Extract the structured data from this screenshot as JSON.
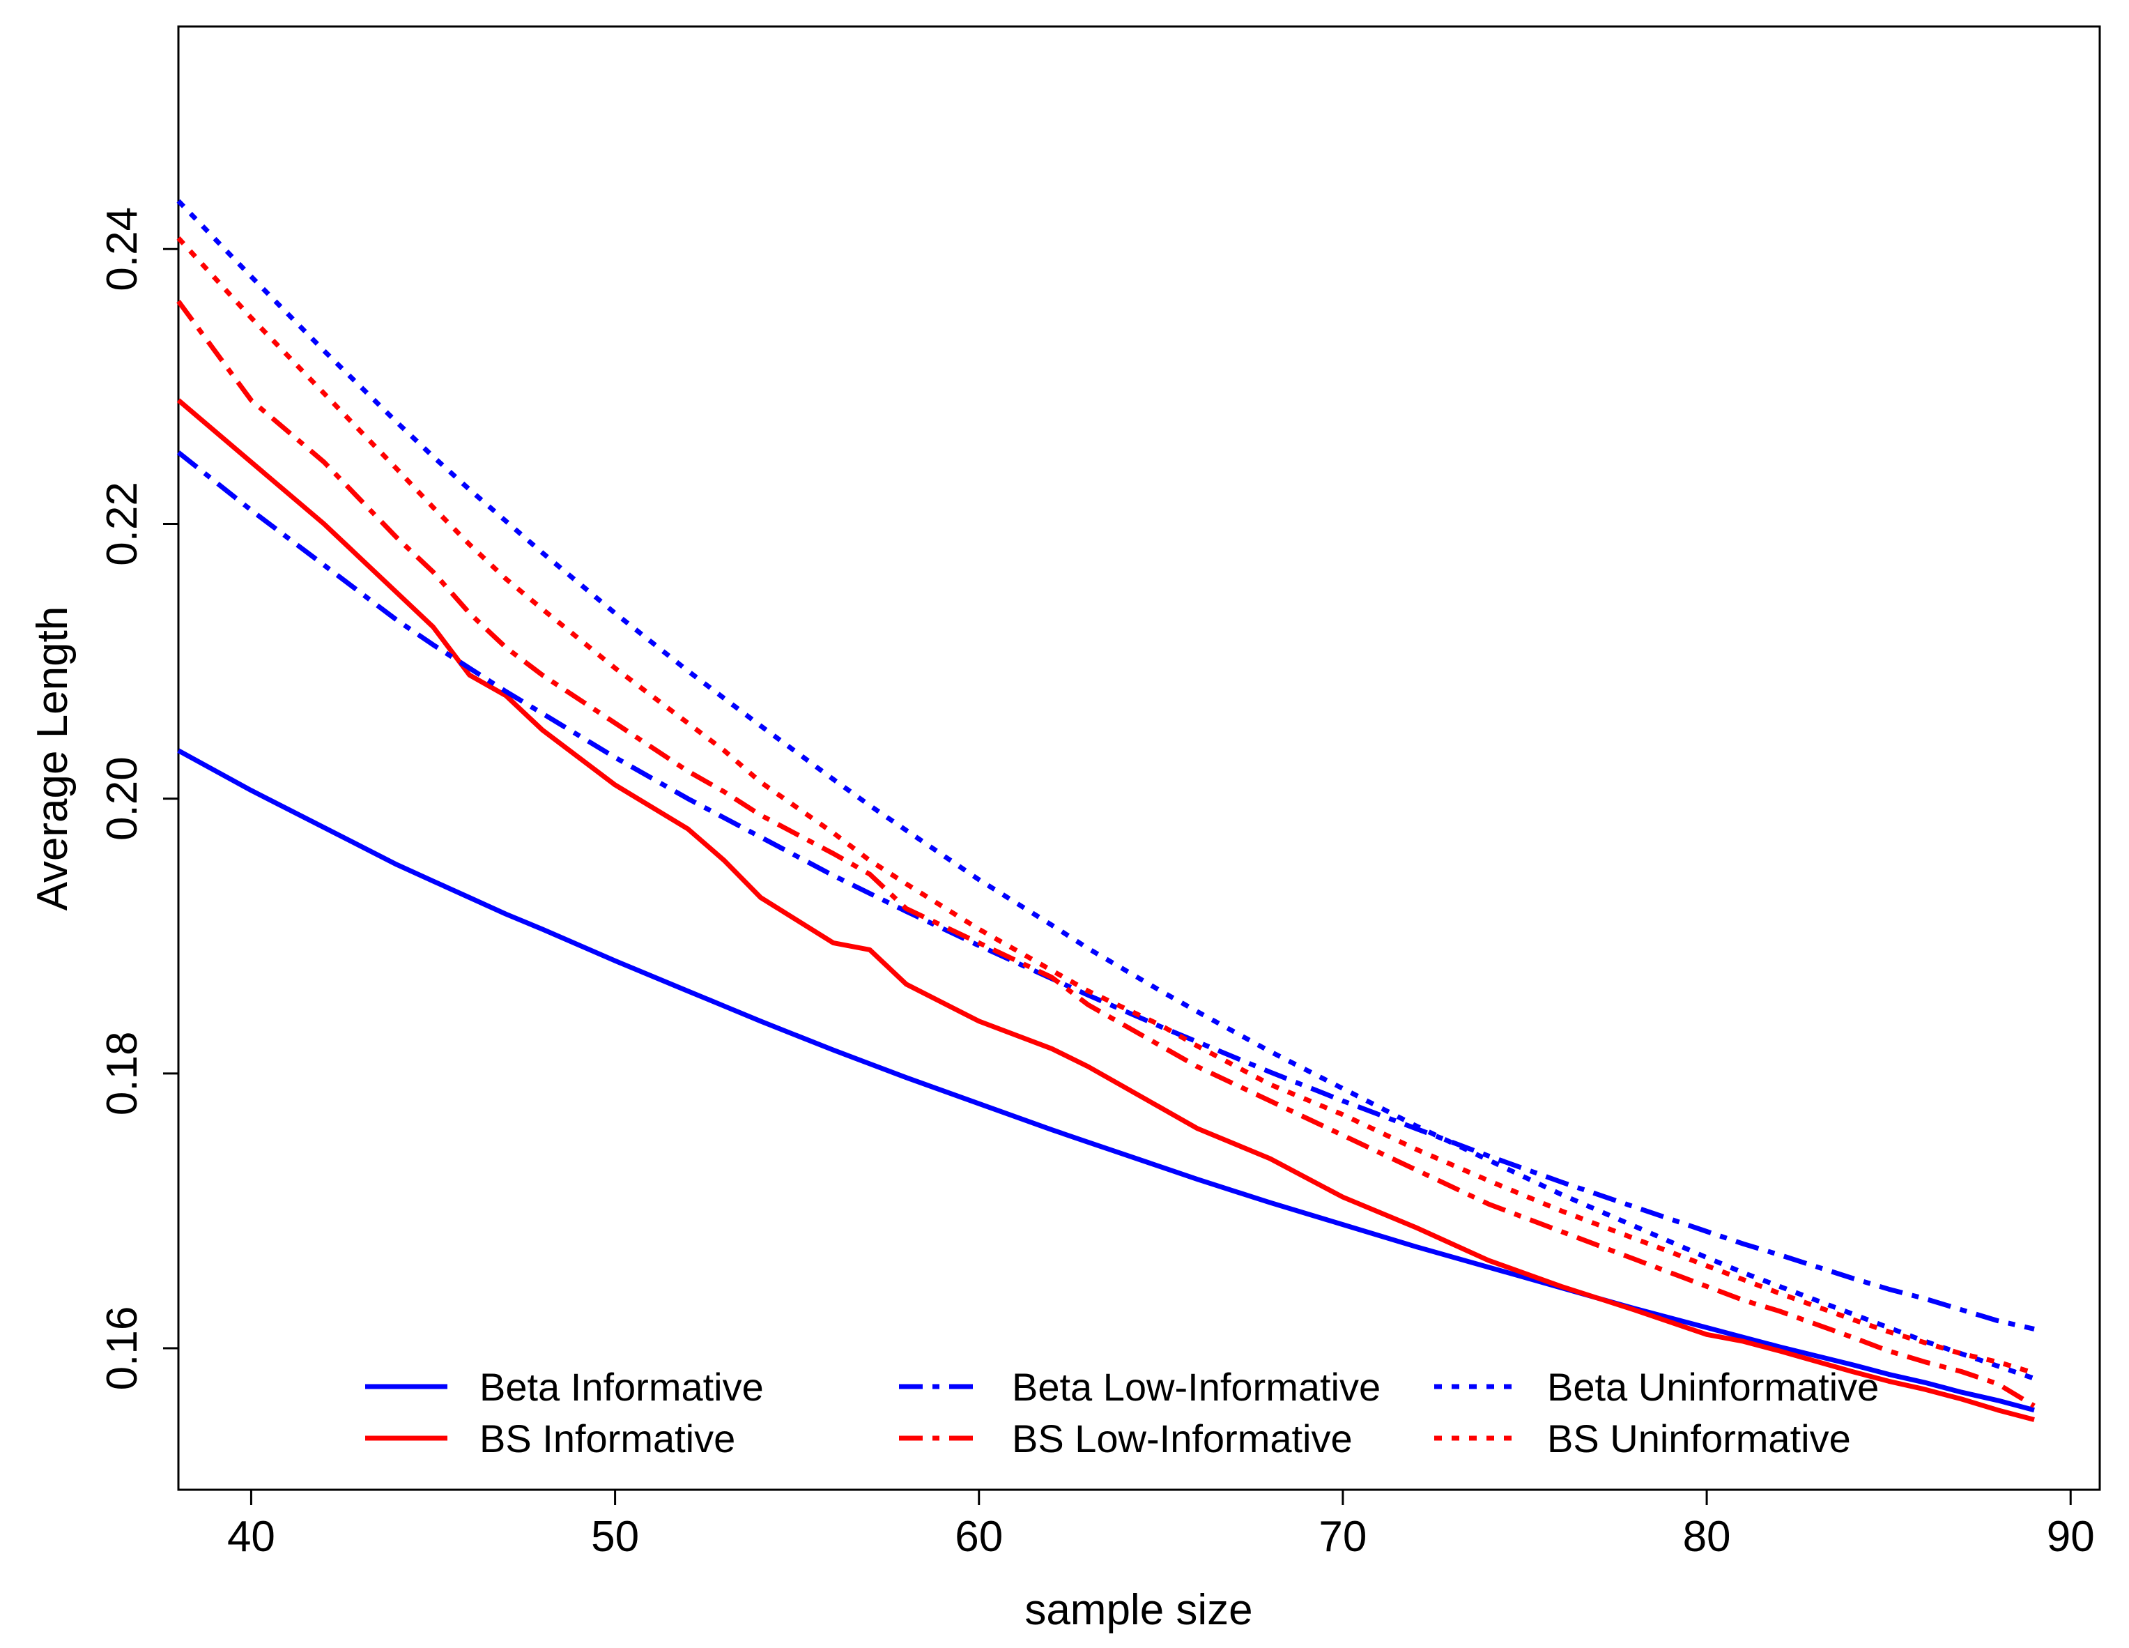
{
  "chart_data": {
    "type": "line",
    "title": "",
    "xlabel": "sample size",
    "ylabel": "Average Length",
    "xlim": [
      38,
      90.8
    ],
    "ylim": [
      0.1497,
      0.2562
    ],
    "xticks": [
      40,
      50,
      60,
      70,
      80,
      90
    ],
    "xtick_labels": [
      "40",
      "50",
      "60",
      "70",
      "80",
      "90"
    ],
    "yticks": [
      0.16,
      0.18,
      0.2,
      0.22,
      0.24
    ],
    "ytick_labels": [
      "0.16",
      "0.18",
      "0.20",
      "0.22",
      "0.24"
    ],
    "grid": false,
    "legend_position": "bottom",
    "x": [
      38,
      40,
      42,
      44,
      45,
      46,
      47,
      48,
      50,
      52,
      53,
      54,
      56,
      57,
      58,
      60,
      62,
      63,
      65,
      66,
      68,
      70,
      72,
      74,
      76,
      78,
      80,
      81,
      82,
      84,
      85,
      86,
      87,
      88,
      89
    ],
    "series": [
      {
        "name": "Beta Informative",
        "color": "#0000ff",
        "style": "solid",
        "values": [
          0.2035,
          0.2006,
          0.1979,
          0.1952,
          0.194,
          0.1928,
          0.1916,
          0.1905,
          0.1882,
          0.186,
          0.1849,
          0.1838,
          0.1817,
          0.1807,
          0.1797,
          0.1778,
          0.1759,
          0.175,
          0.1732,
          0.1723,
          0.1706,
          0.169,
          0.1674,
          0.1659,
          0.1644,
          0.1629,
          0.1615,
          0.1608,
          0.1601,
          0.1588,
          0.1581,
          0.1575,
          0.1568,
          0.1562,
          0.1555
        ]
      },
      {
        "name": "BS Informative",
        "color": "#ff0000",
        "style": "solid",
        "values": [
          0.229,
          0.2245,
          0.22,
          0.215,
          0.2125,
          0.209,
          0.2075,
          0.205,
          0.201,
          0.1978,
          0.1955,
          0.1928,
          0.1895,
          0.189,
          0.1865,
          0.1838,
          0.1818,
          0.1805,
          0.1775,
          0.176,
          0.1738,
          0.171,
          0.1688,
          0.1664,
          0.1645,
          0.1628,
          0.161,
          0.1605,
          0.1598,
          0.1583,
          0.1576,
          0.157,
          0.1563,
          0.1555,
          0.1548
        ]
      },
      {
        "name": "Beta Low-Informative",
        "color": "#0000ff",
        "style": "dashdot",
        "values": [
          0.2252,
          0.221,
          0.217,
          0.213,
          0.2112,
          0.2095,
          0.2078,
          0.2062,
          0.203,
          0.2,
          0.1986,
          0.1972,
          0.1944,
          0.1931,
          0.1918,
          0.1893,
          0.1869,
          0.1857,
          0.1834,
          0.1823,
          0.1801,
          0.178,
          0.176,
          0.174,
          0.1721,
          0.1703,
          0.1685,
          0.1676,
          0.1668,
          0.1651,
          0.1643,
          0.1636,
          0.1628,
          0.162,
          0.1614
        ]
      },
      {
        "name": "BS Low-Informative",
        "color": "#ff0000",
        "style": "dashdot",
        "values": [
          0.2362,
          0.229,
          0.2245,
          0.219,
          0.2165,
          0.2135,
          0.211,
          0.209,
          0.2055,
          0.202,
          0.2005,
          0.1988,
          0.196,
          0.1945,
          0.192,
          0.1895,
          0.187,
          0.185,
          0.182,
          0.1805,
          0.178,
          0.1755,
          0.173,
          0.1705,
          0.1685,
          0.1665,
          0.1645,
          0.1635,
          0.1627,
          0.1608,
          0.1598,
          0.159,
          0.1583,
          0.1574,
          0.1558
        ]
      },
      {
        "name": "Beta Uninformative",
        "color": "#0000ff",
        "style": "dotted",
        "values": [
          0.2435,
          0.238,
          0.2326,
          0.2274,
          0.2249,
          0.2225,
          0.2202,
          0.2179,
          0.2135,
          0.2093,
          0.2073,
          0.2053,
          0.2014,
          0.1995,
          0.1977,
          0.1941,
          0.1908,
          0.1891,
          0.186,
          0.1845,
          0.1816,
          0.1789,
          0.1762,
          0.1737,
          0.1712,
          0.1689,
          0.1666,
          0.1655,
          0.1645,
          0.1625,
          0.1615,
          0.1605,
          0.1596,
          0.1587,
          0.1578
        ]
      },
      {
        "name": "BS Uninformative",
        "color": "#ff0000",
        "style": "dotted",
        "values": [
          0.2408,
          0.235,
          0.2295,
          0.224,
          0.2212,
          0.2185,
          0.216,
          0.2138,
          0.2095,
          0.2055,
          0.2035,
          0.2012,
          0.1975,
          0.1955,
          0.1938,
          0.1905,
          0.1875,
          0.186,
          0.1835,
          0.182,
          0.1792,
          0.177,
          0.1745,
          0.1722,
          0.17,
          0.168,
          0.166,
          0.165,
          0.164,
          0.1621,
          0.1612,
          0.1604,
          0.1596,
          0.159,
          0.1582
        ]
      }
    ]
  }
}
